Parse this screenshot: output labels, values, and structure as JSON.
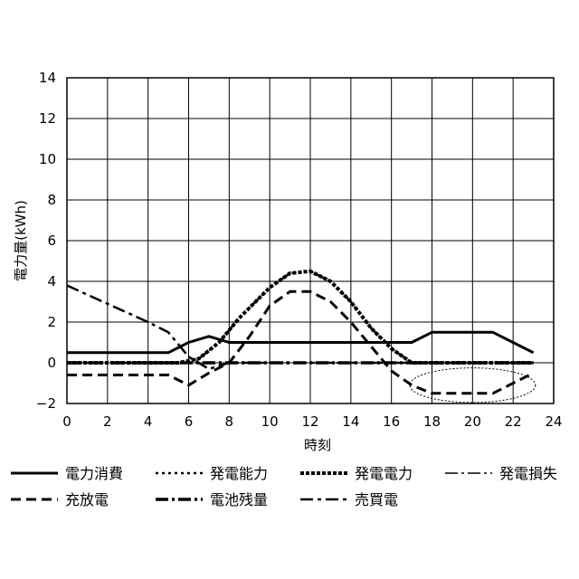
{
  "chart_data": {
    "type": "line",
    "title": "",
    "xlabel": "時刻",
    "ylabel": "電力量(kWh)",
    "xlim": [
      0,
      24
    ],
    "ylim": [
      -2,
      14
    ],
    "x_ticks": [
      0,
      2,
      4,
      6,
      8,
      10,
      12,
      14,
      16,
      18,
      20,
      22,
      24
    ],
    "y_ticks": [
      -2,
      0,
      2,
      4,
      6,
      8,
      10,
      12,
      14
    ],
    "x_tick_labels": [
      "0",
      "2",
      "4",
      "6",
      "8",
      "10",
      "12",
      "14",
      "16",
      "18",
      "20",
      "22",
      "24"
    ],
    "y_tick_labels": [
      "−2",
      "0",
      "2",
      "4",
      "6",
      "8",
      "10",
      "12",
      "14"
    ],
    "grid": true,
    "legend_position": "bottom",
    "series": [
      {
        "name": "電力消費",
        "style": "solid",
        "points": [
          [
            0,
            0.5
          ],
          [
            5,
            0.5
          ],
          [
            6,
            1.0
          ],
          [
            7,
            1.3
          ],
          [
            8,
            1.0
          ],
          [
            17,
            1.0
          ],
          [
            18,
            1.5
          ],
          [
            21,
            1.5
          ],
          [
            23,
            0.5
          ]
        ]
      },
      {
        "name": "発電能力",
        "style": "dotted",
        "points": [
          [
            0,
            0
          ],
          [
            5.5,
            0
          ],
          [
            6.5,
            0.2
          ],
          [
            7.5,
            1
          ],
          [
            8.5,
            2.2
          ],
          [
            10,
            3.7
          ],
          [
            11,
            4.4
          ],
          [
            12,
            4.5
          ],
          [
            13,
            4.0
          ],
          [
            14,
            3.0
          ],
          [
            15,
            1.7
          ],
          [
            16,
            0.7
          ],
          [
            17,
            0
          ],
          [
            23,
            0
          ]
        ]
      },
      {
        "name": "発電電力",
        "style": "short-dash-dense",
        "points": [
          [
            0,
            0
          ],
          [
            5.5,
            0
          ],
          [
            6.5,
            0.2
          ],
          [
            7.5,
            1
          ],
          [
            8.5,
            2.2
          ],
          [
            10,
            3.7
          ],
          [
            11,
            4.4
          ],
          [
            12,
            4.5
          ],
          [
            13,
            4.0
          ],
          [
            14,
            3.0
          ],
          [
            15,
            1.7
          ],
          [
            16,
            0.7
          ],
          [
            17,
            0
          ],
          [
            23,
            0
          ]
        ]
      },
      {
        "name": "発電損失",
        "style": "dash-dot-thin",
        "points": [
          [
            0,
            0
          ],
          [
            23,
            0
          ]
        ]
      },
      {
        "name": "充放電",
        "style": "dashed",
        "points": [
          [
            0,
            -0.6
          ],
          [
            5,
            -0.6
          ],
          [
            6,
            -1.1
          ],
          [
            7,
            -0.5
          ],
          [
            8,
            0
          ],
          [
            9,
            1.3
          ],
          [
            10,
            2.8
          ],
          [
            11,
            3.5
          ],
          [
            12,
            3.5
          ],
          [
            13,
            3.0
          ],
          [
            14,
            2.0
          ],
          [
            15,
            0.8
          ],
          [
            16,
            -0.4
          ],
          [
            17,
            -1.1
          ],
          [
            18,
            -1.5
          ],
          [
            21,
            -1.5
          ],
          [
            23,
            -0.5
          ]
        ]
      },
      {
        "name": "電池残量",
        "style": "dash-dot-thick",
        "points": [
          [
            0,
            0
          ],
          [
            23,
            0
          ]
        ]
      },
      {
        "name": "売買電",
        "style": "dash-dot",
        "points": [
          [
            0,
            3.8
          ],
          [
            2,
            2.9
          ],
          [
            4,
            2.0
          ],
          [
            5,
            1.5
          ],
          [
            6,
            0.3
          ],
          [
            7,
            -0.3
          ],
          [
            8,
            0
          ],
          [
            23,
            0
          ]
        ]
      }
    ],
    "annotations": [
      {
        "type": "ellipse",
        "center": [
          20,
          -1.1
        ],
        "rx_data": 3.1,
        "ry_data": 0.85,
        "style": "dotted"
      }
    ]
  }
}
